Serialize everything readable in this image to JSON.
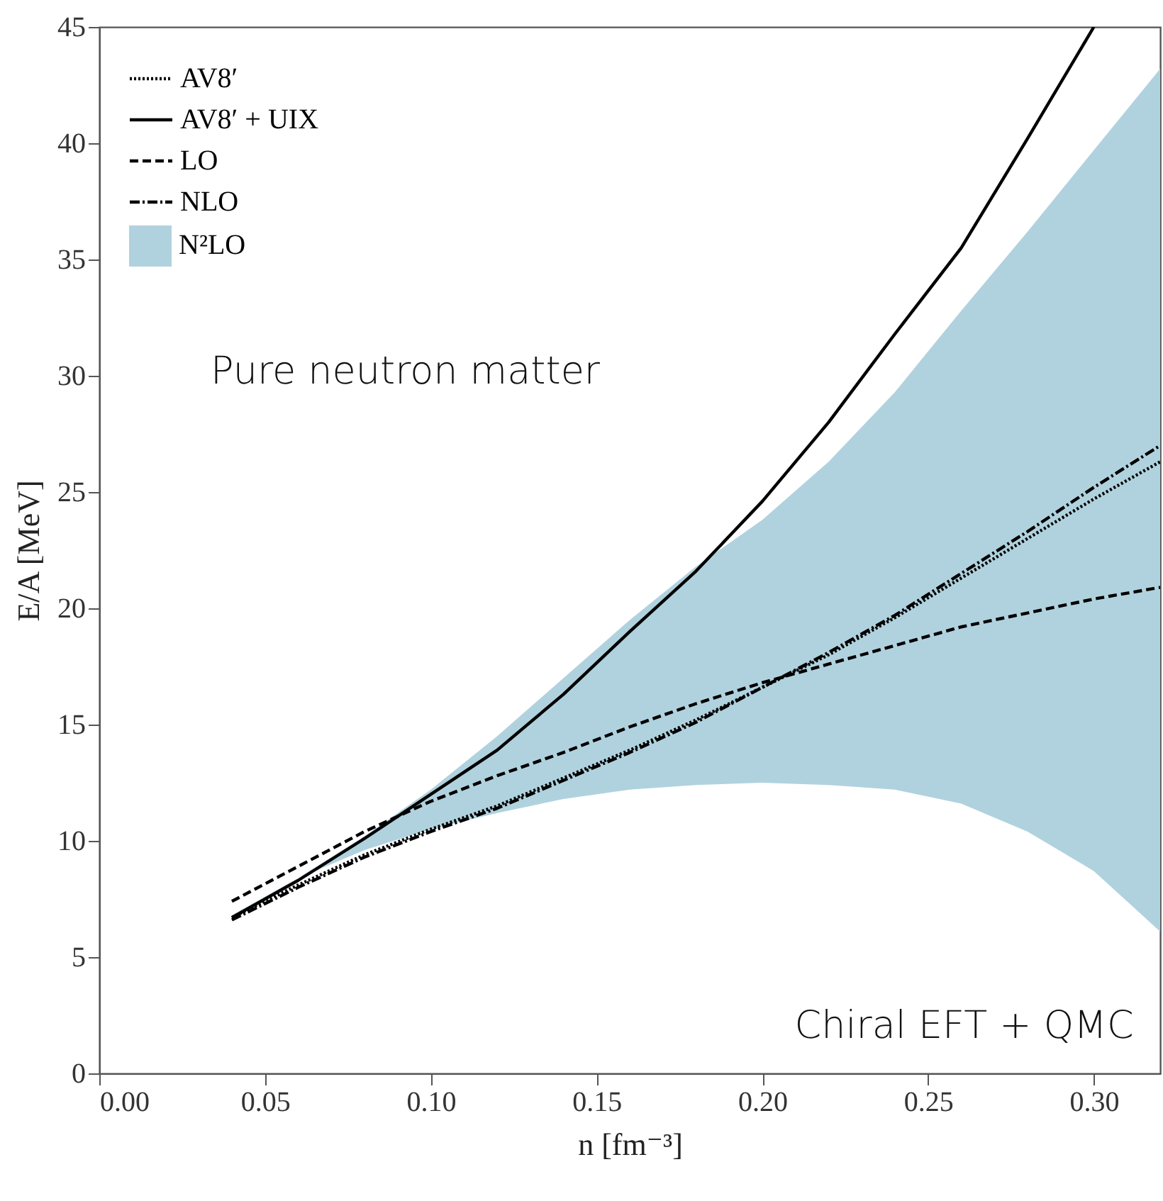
{
  "chart_data": {
    "type": "line",
    "xlabel": "n  [fm⁻³]",
    "ylabel": "E/A [MeV]",
    "x": [
      0.04,
      0.06,
      0.08,
      0.1,
      0.12,
      0.14,
      0.16,
      0.18,
      0.2,
      0.22,
      0.24,
      0.26,
      0.28,
      0.3,
      0.32
    ],
    "series": [
      {
        "name": "AV8′",
        "color": "#000000",
        "line_style": "dotted",
        "values": [
          6.7,
          8.1,
          9.4,
          10.5,
          11.5,
          12.7,
          13.9,
          15.2,
          16.6,
          18.0,
          19.6,
          21.3,
          23.0,
          24.7,
          26.3
        ]
      },
      {
        "name": "AV8′ + UIX",
        "color": "#000000",
        "line_style": "solid",
        "values": [
          6.7,
          8.3,
          10.1,
          12.0,
          13.9,
          16.3,
          19.0,
          21.6,
          24.6,
          28.0,
          31.8,
          35.5,
          40.2,
          45.0,
          null
        ]
      },
      {
        "name": "LO",
        "color": "#000000",
        "line_style": "dashed",
        "values": [
          7.4,
          8.9,
          10.4,
          11.7,
          12.8,
          13.8,
          14.9,
          15.9,
          16.8,
          17.6,
          18.4,
          19.2,
          19.8,
          20.4,
          20.9
        ]
      },
      {
        "name": "NLO",
        "color": "#000000",
        "line_style": "dashdot",
        "values": [
          6.6,
          8.0,
          9.3,
          10.4,
          11.4,
          12.6,
          13.8,
          15.1,
          16.6,
          18.1,
          19.7,
          21.5,
          23.3,
          25.2,
          27.0
        ]
      },
      {
        "name": "N²LO",
        "type": "area",
        "color": "#b0d2de",
        "lower": [
          6.6,
          8.4,
          9.6,
          10.5,
          11.2,
          11.8,
          12.2,
          12.4,
          12.5,
          12.4,
          12.2,
          11.6,
          10.4,
          8.7,
          6.1
        ],
        "upper": [
          6.8,
          8.4,
          10.2,
          12.2,
          14.5,
          17.0,
          19.5,
          21.8,
          23.8,
          26.3,
          29.3,
          32.8,
          36.2,
          39.7,
          43.2
        ],
        "values": [
          null,
          null,
          null,
          null,
          null,
          null,
          null,
          null,
          null,
          null,
          null,
          null,
          null,
          null,
          null
        ]
      }
    ],
    "xlim": [
      0,
      0.32
    ],
    "ylim": [
      0,
      45
    ],
    "xticks": [
      {
        "value": 0,
        "label": "0.00"
      },
      {
        "value": 0.05,
        "label": "0.05"
      },
      {
        "value": 0.1,
        "label": "0.10"
      },
      {
        "value": 0.15,
        "label": "0.15"
      },
      {
        "value": 0.2,
        "label": "0.20"
      },
      {
        "value": 0.25,
        "label": "0.25"
      },
      {
        "value": 0.3,
        "label": "0.30"
      }
    ],
    "yticks": [
      0,
      5,
      10,
      15,
      20,
      25,
      30,
      35,
      40,
      45
    ],
    "legend": "top left",
    "grid": false,
    "annotations": [
      "Pure neutron matter",
      "Chiral EFT + QMC"
    ]
  }
}
